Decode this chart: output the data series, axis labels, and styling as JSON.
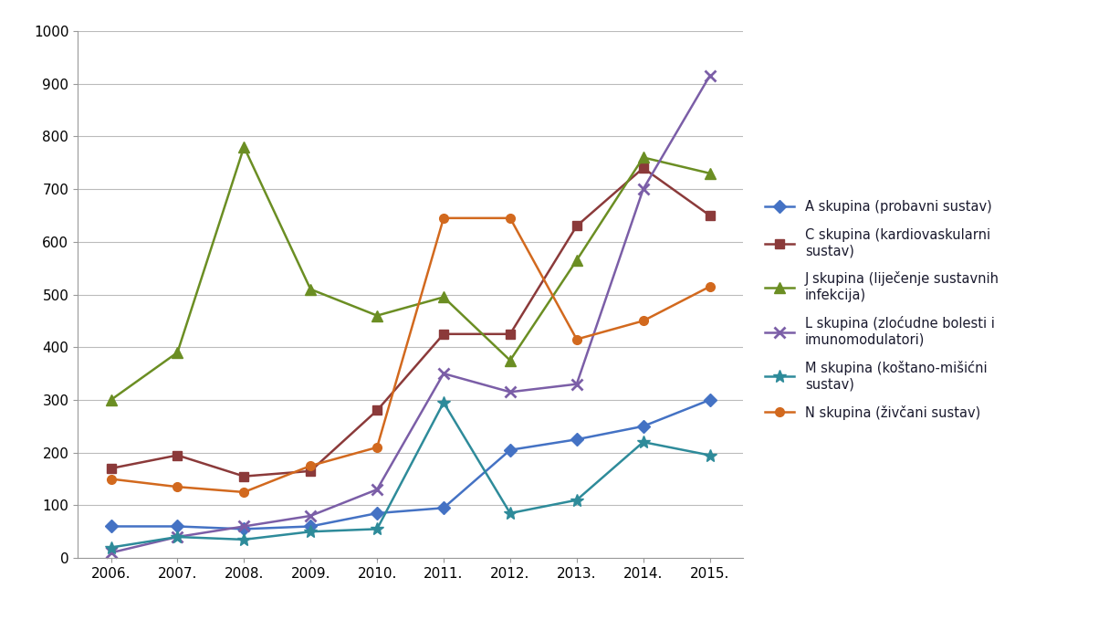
{
  "years": [
    2006,
    2007,
    2008,
    2009,
    2010,
    2011,
    2012,
    2013,
    2014,
    2015
  ],
  "series": [
    {
      "label": "A skupina (probavni sustav)",
      "values": [
        60,
        60,
        55,
        60,
        85,
        95,
        205,
        225,
        250,
        300
      ],
      "color": "#4472C4",
      "marker": "D",
      "markersize": 7
    },
    {
      "label": "C skupina (kardiovaskularni\nsustav)",
      "values": [
        170,
        195,
        155,
        165,
        280,
        425,
        425,
        630,
        740,
        650
      ],
      "color": "#8B3A3A",
      "marker": "s",
      "markersize": 7
    },
    {
      "label": "J skupina (liječenje sustavnih\ninfekcija)",
      "values": [
        300,
        390,
        780,
        510,
        460,
        495,
        375,
        565,
        760,
        730
      ],
      "color": "#6B8E23",
      "marker": "^",
      "markersize": 8
    },
    {
      "label": "L skupina (zloćudne bolesti i\nimunomodulatori)",
      "values": [
        10,
        40,
        60,
        80,
        130,
        350,
        315,
        330,
        700,
        915
      ],
      "color": "#7B5EA7",
      "marker": "x",
      "markersize": 9,
      "markeredgewidth": 2.0
    },
    {
      "label": "M skupina (koštano-mišićni\nsustav)",
      "values": [
        20,
        40,
        35,
        50,
        55,
        295,
        85,
        110,
        220,
        195
      ],
      "color": "#2E8B9A",
      "marker": "*",
      "markersize": 10
    },
    {
      "label": "N skupina (živčani sustav)",
      "values": [
        150,
        135,
        125,
        175,
        210,
        645,
        645,
        415,
        450,
        515
      ],
      "color": "#D2691E",
      "marker": "o",
      "markersize": 7
    }
  ],
  "xlim": [
    2005.5,
    2015.5
  ],
  "ylim": [
    0,
    1000
  ],
  "yticks": [
    0,
    100,
    200,
    300,
    400,
    500,
    600,
    700,
    800,
    900,
    1000
  ],
  "xtick_labels": [
    "2006.",
    "2007.",
    "2008.",
    "2009.",
    "2010.",
    "2011.",
    "2012.",
    "2013.",
    "2014.",
    "2015."
  ],
  "background_color": "#ffffff",
  "grid_color": "#bbbbbb",
  "legend_fontsize": 10.5,
  "axis_fontsize": 11
}
